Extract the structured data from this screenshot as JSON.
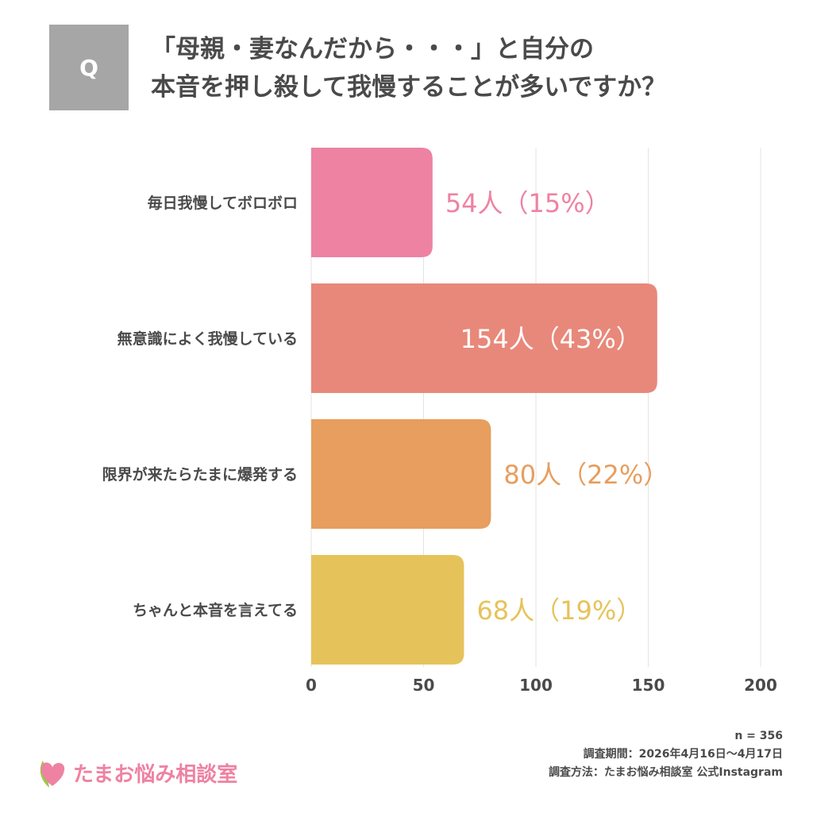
{
  "header": {
    "q_badge": "Q",
    "title_line1": "「母親・妻なんだから・・・」と自分の",
    "title_line2": "本音を押し殺して我慢することが多いですか？"
  },
  "chart_data": {
    "type": "bar",
    "orientation": "horizontal",
    "categories": [
      "毎日我慢してボロボロ",
      "無意識によく我慢している",
      "限界が来たらたまに爆発する",
      "ちゃんと本音を言えてる"
    ],
    "values": [
      54,
      154,
      80,
      68
    ],
    "percentages": [
      15,
      43,
      22,
      19
    ],
    "data_labels": [
      "54人（15%）",
      "154人（43%）",
      "80人（22%）",
      "68人（19%）"
    ],
    "colors": [
      "#ee82a2",
      "#e8887a",
      "#e79e5e",
      "#e6c35a"
    ],
    "xlim": [
      0,
      200
    ],
    "xticks": [
      "0",
      "50",
      "100",
      "150",
      "200"
    ],
    "grid": true,
    "title": "",
    "xlabel": "",
    "ylabel": ""
  },
  "footer": {
    "n": "n = 356",
    "period": "調査期間：2026年4月16日〜4月17日",
    "method": "調査方法：たまお悩み相談室 公式Instagram",
    "logo_text": "たまお悩み相談室"
  }
}
